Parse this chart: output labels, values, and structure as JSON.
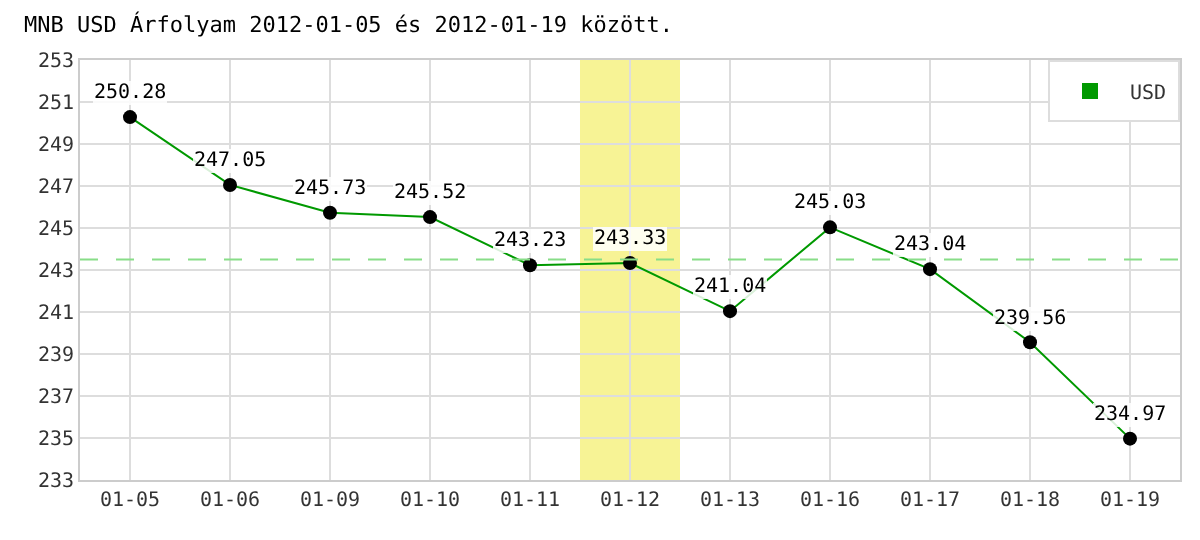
{
  "chart_data": {
    "type": "line",
    "title": "MNB USD Árfolyam 2012-01-05 és 2012-01-19 között.",
    "categories": [
      "01-05",
      "01-06",
      "01-09",
      "01-10",
      "01-11",
      "01-12",
      "01-13",
      "01-16",
      "01-17",
      "01-18",
      "01-19"
    ],
    "series": [
      {
        "name": "USD",
        "color": "#009900",
        "values": [
          250.28,
          247.05,
          245.73,
          245.52,
          243.23,
          243.33,
          241.04,
          245.03,
          243.04,
          239.56,
          234.97
        ]
      }
    ],
    "ylim": [
      233,
      253
    ],
    "yticks": [
      233,
      235,
      237,
      239,
      241,
      243,
      245,
      247,
      249,
      251,
      253
    ],
    "ref_lines": [
      {
        "axis": "y",
        "value": 243.5,
        "color": "#88dd88",
        "line_style": "dashed"
      }
    ],
    "bands": [
      {
        "axis": "x",
        "from": "01-12",
        "to": "01-12",
        "color": "#f5f07a"
      }
    ],
    "data_labels": true,
    "grid": true,
    "legend": "top right",
    "marker": "circle",
    "line_style": "solid"
  }
}
